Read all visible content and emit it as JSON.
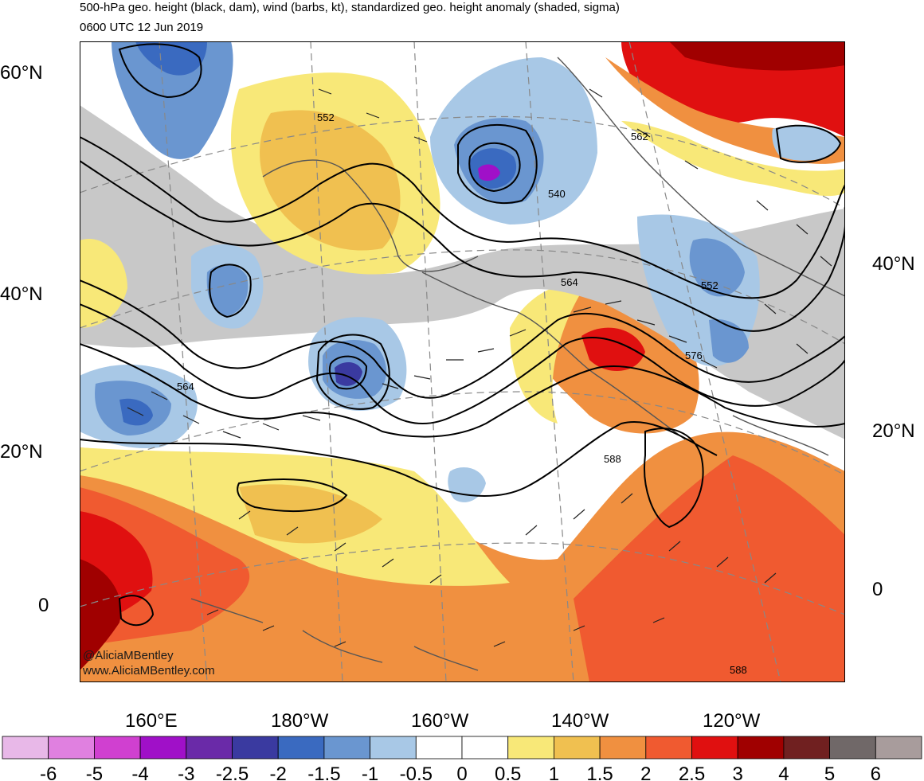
{
  "title_line1": "500-hPa geo. height (black, dam), wind (barbs, kt), standardized geo. height anomaly (shaded, sigma)",
  "title_line2": "0600 UTC 12 Jun 2019",
  "lat_labels_left": [
    "60°N",
    "40°N",
    "20°N",
    "0"
  ],
  "lat_labels_right": [
    "40°N",
    "20°N",
    "0"
  ],
  "lon_labels": [
    "160°E",
    "180°W",
    "160°W",
    "140°W",
    "120°W"
  ],
  "contour_labels": [
    "552",
    "540",
    "562",
    "552",
    "564",
    "564",
    "576",
    "588",
    "588"
  ],
  "credit_line1": "@AliciaMBentley",
  "credit_line2": "www.AliciaMBentley.com",
  "colorbar": {
    "labels": [
      "-6",
      "-5",
      "-4",
      "-3",
      "-2.5",
      "-2",
      "-1.5",
      "-1",
      "-0.5",
      "0",
      "0.5",
      "1",
      "1.5",
      "2",
      "2.5",
      "3",
      "4",
      "5",
      "6"
    ],
    "colors": [
      "#e8b8e8",
      "#e080e0",
      "#d040d0",
      "#a010c8",
      "#6a2aa8",
      "#3a3aa0",
      "#3a6ac0",
      "#6a96d0",
      "#a8c8e6",
      "#ffffff",
      "#ffffff",
      "#f8e878",
      "#f0c050",
      "#f09040",
      "#f05a30",
      "#e01010",
      "#a00000",
      "#702020",
      "#706868",
      "#a89c9c"
    ]
  },
  "colors": {
    "grid": "#888888",
    "contour": "#000000",
    "coast": "#555555"
  }
}
